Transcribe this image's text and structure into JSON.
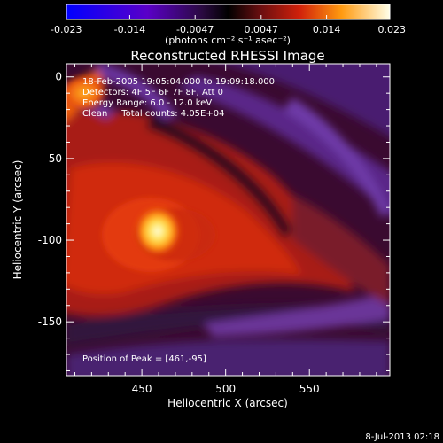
{
  "chart_data": {
    "type": "heatmap",
    "title": "Reconstructed RHESSI Image",
    "xlabel": "Heliocentric X (arcsec)",
    "ylabel": "Heliocentric Y (arcsec)",
    "xlim": [
      405,
      598
    ],
    "ylim": [
      -183,
      8
    ],
    "x_ticks": [
      "450",
      "500",
      "550"
    ],
    "x_tick_values": [
      450,
      500,
      550
    ],
    "y_ticks": [
      "0",
      "-50",
      "-100",
      "-150"
    ],
    "y_tick_values": [
      0,
      -50,
      -100,
      -150
    ],
    "colorbar": {
      "range": [
        -0.023,
        0.023
      ],
      "ticks": [
        "-0.023",
        "-0.014",
        "-0.0047",
        "0.0047",
        "0.014",
        "0.023"
      ],
      "tick_values": [
        -0.023,
        -0.014,
        -0.0047,
        0.0047,
        0.014,
        0.023
      ],
      "unit_label": "(photons cm⁻² s⁻¹ asec⁻²)"
    },
    "annotations": [
      "18-Feb-2005 19:05:04.000 to 19:09:18.000",
      "Detectors: 4F 5F 6F 7F 8F, Att 0",
      "Energy Range: 6.0 - 12.0 keV",
      "Clean     Total counts: 4.05E+04"
    ],
    "peak_label": "Position of Peak = [461,-95]",
    "peak": {
      "x": 461,
      "y": -95,
      "value": 0.023
    },
    "secondary_peak": {
      "x": 415,
      "y": -20,
      "value": 0.012
    }
  },
  "footer": {
    "timestamp": "8-Jul-2013 02:18"
  },
  "colors": {
    "background": "#000000",
    "text": "#ffffff"
  }
}
